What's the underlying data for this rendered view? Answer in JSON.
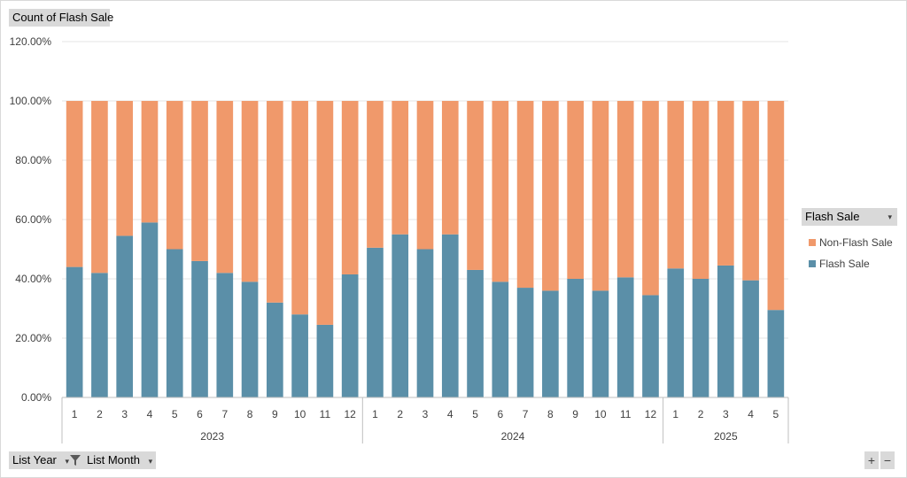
{
  "chart_data": {
    "type": "bar",
    "stacked": true,
    "ylabel_button": "Count of Flash Sale",
    "y_ticks": [
      "0.00%",
      "20.00%",
      "40.00%",
      "60.00%",
      "80.00%",
      "100.00%",
      "120.00%"
    ],
    "ylim": [
      0,
      1.2
    ],
    "grid": true,
    "legend_position": "right",
    "legend_title": "Flash Sale",
    "groups": [
      {
        "label": "2023",
        "categories": [
          "1",
          "2",
          "3",
          "4",
          "5",
          "6",
          "7",
          "8",
          "9",
          "10",
          "11",
          "12"
        ]
      },
      {
        "label": "2024",
        "categories": [
          "1",
          "2",
          "3",
          "4",
          "5",
          "6",
          "7",
          "8",
          "9",
          "10",
          "11",
          "12"
        ]
      },
      {
        "label": "2025",
        "categories": [
          "1",
          "2",
          "3",
          "4",
          "5"
        ]
      }
    ],
    "series": [
      {
        "name": "Flash Sale",
        "color": "#5b8fa8",
        "values": [
          0.44,
          0.42,
          0.545,
          0.59,
          0.5,
          0.46,
          0.42,
          0.39,
          0.32,
          0.28,
          0.245,
          0.415,
          0.505,
          0.55,
          0.5,
          0.55,
          0.43,
          0.39,
          0.37,
          0.36,
          0.4,
          0.36,
          0.405,
          0.345,
          0.435,
          0.4,
          0.445,
          0.395,
          0.295
        ]
      },
      {
        "name": "Non-Flash Sale",
        "color": "#f0996b",
        "values": [
          0.56,
          0.58,
          0.455,
          0.41,
          0.5,
          0.54,
          0.58,
          0.61,
          0.68,
          0.72,
          0.755,
          0.585,
          0.495,
          0.45,
          0.5,
          0.45,
          0.57,
          0.61,
          0.63,
          0.64,
          0.6,
          0.64,
          0.595,
          0.655,
          0.565,
          0.6,
          0.555,
          0.605,
          0.705
        ]
      }
    ],
    "legend_order": [
      "Non-Flash Sale",
      "Flash Sale"
    ]
  },
  "filters": {
    "year_label": "List Year",
    "month_label": "List Month"
  },
  "zoom": {
    "plus": "+",
    "minus": "−"
  },
  "icons": {
    "filter": "filter-icon",
    "dropdown": "dropdown-arrow-icon"
  }
}
